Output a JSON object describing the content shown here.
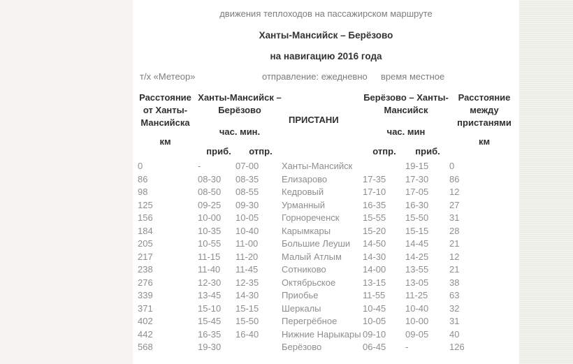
{
  "page": {
    "title_line1": "движения теплоходов на пассажирском маршруте",
    "title_line2": "Ханты-Мансийск – Берёзово",
    "title_line3": "на навигацию 2016 года",
    "info": {
      "vessel": "т/х «Метеор»",
      "departure": "отправление: ежедневно",
      "time_note": "время местное"
    }
  },
  "table": {
    "col_distance_from": {
      "line1": "Расстояние",
      "line2": "от Ханты-",
      "line3": "Мансийска",
      "unit": "км"
    },
    "dir_outbound": {
      "line1": "Ханты-Мансийск –",
      "line2": "Берёзово",
      "units": "час. мин.",
      "sub_left": "приб.",
      "sub_right": "отпр."
    },
    "piers_header": "ПРИСТАНИ",
    "dir_return": {
      "line1": "Берёзово – Ханты-",
      "line2": "Мансийск",
      "units": "час. мин",
      "sub_left": "отпр.",
      "sub_right": "приб."
    },
    "col_distance_between": {
      "line1": "Расстояние",
      "line2": "между",
      "line3": "пристанями",
      "unit": "км"
    },
    "rows": [
      [
        "0",
        "-",
        "07-00",
        "Ханты-Мансийск",
        "",
        "19-15",
        "0"
      ],
      [
        "86",
        "08-30",
        "08-35",
        "Елизарово",
        "17-35",
        "17-30",
        "86"
      ],
      [
        "98",
        "08-50",
        "08-55",
        "Кедровый",
        "17-10",
        "17-05",
        "12"
      ],
      [
        "125",
        "09-25",
        "09-30",
        "Урманный",
        "16-35",
        "16-30",
        "27"
      ],
      [
        "156",
        "10-00",
        "10-05",
        "Горнореченск",
        "15-55",
        "15-50",
        "31"
      ],
      [
        "184",
        "10-35",
        "10-40",
        "Карымкары",
        "15-20",
        "15-15",
        "28"
      ],
      [
        "205",
        "10-55",
        "11-00",
        "Большие Леуши",
        "14-50",
        "14-45",
        "21"
      ],
      [
        "217",
        "11-15",
        "11-20",
        "Малый Атлым",
        "14-30",
        "14-25",
        "12"
      ],
      [
        "238",
        "11-40",
        "11-45",
        "Сотниково",
        "14-00",
        "13-55",
        "21"
      ],
      [
        "276",
        "12-30",
        "12-35",
        "Октябрьское",
        "13-15",
        "13-05",
        "38"
      ],
      [
        "339",
        "13-45",
        "14-30",
        "Приобье",
        "11-55",
        "11-25",
        "63"
      ],
      [
        "371",
        "15-10",
        "15-15",
        "Шеркалы",
        "10-45",
        "10-40",
        "32"
      ],
      [
        "402",
        "15-45",
        "15-50",
        "Перегрёбное",
        "10-05",
        "10-00",
        "31"
      ],
      [
        "442",
        "16-35",
        "16-40",
        "Нижние Нарыкары",
        "09-10",
        "09-05",
        "40"
      ],
      [
        "568",
        "19-30",
        "",
        "Берёзово",
        "06-45",
        "-",
        "126"
      ]
    ],
    "cell_names": [
      "distance-from-khanty-mansiysk",
      "outbound-arrival-time",
      "outbound-departure-time",
      "pier-name",
      "return-departure-time",
      "return-arrival-time",
      "distance-between-piers"
    ]
  },
  "colors": {
    "page_background": "#f5f4f0",
    "paper_background": "#ffffff",
    "right_band_stripe_light": "#f1f2ed",
    "right_band_stripe_dark": "#e9ebe3",
    "body_text": "#8e8e8e",
    "header_text": "#2f2f2f",
    "subtitle_text": "#7d7d7d"
  }
}
